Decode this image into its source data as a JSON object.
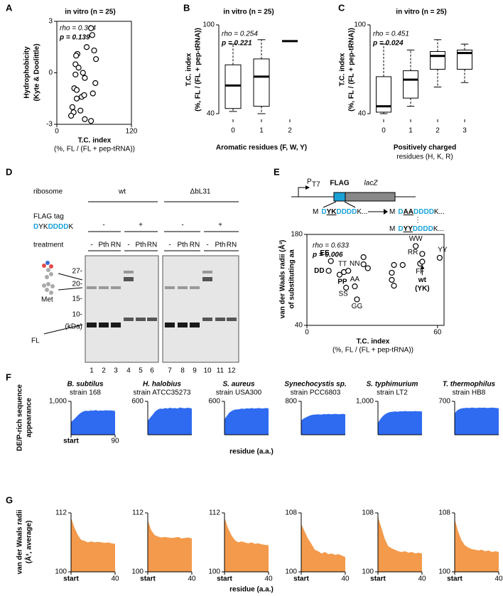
{
  "panel_labels": [
    "A",
    "B",
    "C",
    "D",
    "E",
    "F",
    "G"
  ],
  "chart_data": [
    {
      "type": "scatter",
      "title": "in vitro (n = 25)",
      "annotations": [
        "rho = 0.304",
        "p = 0.139"
      ],
      "annotation_colors": [
        "#000000",
        "#e0241b"
      ],
      "xlabel": [
        "T.C. index",
        "(%, FL / (FL + pep-tRNA))"
      ],
      "ylabel": [
        "Hydrophobicity",
        "(Kyte & Doolittle)"
      ],
      "x": [
        55,
        57,
        48,
        60,
        63,
        33,
        31,
        30,
        35,
        30,
        42,
        45,
        28,
        32,
        62,
        58,
        40,
        44,
        32,
        25,
        27,
        23,
        38,
        45,
        55
      ],
      "values": [
        2.6,
        2.2,
        1.5,
        1.3,
        0.8,
        1.1,
        1.0,
        0.5,
        0.3,
        -0.1,
        0.0,
        -0.3,
        -0.9,
        -1.0,
        -0.6,
        -1.2,
        -1.4,
        -1.3,
        -1.5,
        -2.0,
        -2.3,
        -2.5,
        -2.2,
        -2.7,
        -2.8
      ],
      "xlim": [
        0,
        120
      ],
      "ylim": [
        -3,
        3
      ],
      "xticks": [
        0,
        120
      ],
      "yticks": [
        -3,
        0,
        3
      ],
      "color": "#000000"
    },
    {
      "type": "box",
      "title": "in vitro (n = 25)",
      "annotations": [
        "rho = 0.254",
        "p = 0.221"
      ],
      "annotation_colors": [
        "#000000",
        "#e0241b"
      ],
      "xlabel": [
        "Aromatic  residues (F, W, Y)"
      ],
      "ylabel": [
        "T.C. index",
        "(%, FL / (FL + pep-tRNA))"
      ],
      "categories": [
        0,
        1,
        2
      ],
      "boxes": [
        {
          "low": 41.5,
          "q1": 43.5,
          "median": 59,
          "q3": 73,
          "high": 87
        },
        {
          "low": 40,
          "q1": 45,
          "median": 65,
          "q3": 77,
          "high": 90
        },
        {
          "median": 89
        }
      ],
      "ylim": [
        40,
        100
      ],
      "yticks": [
        40,
        100
      ]
    },
    {
      "type": "box",
      "title": "in vitro (n = 25)",
      "annotations": [
        "rho = 0.451",
        "p = 0.024"
      ],
      "annotation_colors": [
        "#000000",
        "#000000"
      ],
      "xlabel": [
        "Positively charged",
        "residues (H, K, R)"
      ],
      "ylabel": [
        "T.C. index",
        "(%, FL / (FL + pep-tRNA))"
      ],
      "categories": [
        0,
        1,
        2,
        3
      ],
      "boxes": [
        {
          "low": 40,
          "q1": 41,
          "median": 45,
          "q3": 65,
          "high": 87
        },
        {
          "low": 45,
          "q1": 50.5,
          "median": 63,
          "q3": 69,
          "high": 83
        },
        {
          "low": 58,
          "q1": 70,
          "median": 79,
          "q3": 82,
          "high": 90
        },
        {
          "low": 61,
          "q1": 70,
          "median": 81,
          "q3": 83,
          "high": 87
        }
      ],
      "ylim": [
        40,
        100
      ],
      "yticks": [
        40,
        100
      ]
    },
    {
      "type": "scatter",
      "annotations": [
        "rho = 0.633",
        "p = 0.006"
      ],
      "annotation_colors": [
        "#000000",
        "#000000"
      ],
      "xlabel": [
        "T.C. index",
        "(%, FL / (FL + pep-tRNA))"
      ],
      "ylabel": [
        "van der Waals radii (Å³)",
        "of substituting aa"
      ],
      "x": [
        11,
        10,
        15,
        17,
        19,
        18,
        22,
        23,
        26,
        26,
        28,
        39,
        40,
        39,
        40,
        44,
        52,
        53,
        50,
        61,
        53
      ],
      "values": [
        139,
        124,
        118,
        122,
        124,
        98,
        100,
        80,
        145,
        134,
        128,
        121,
        133,
        110,
        101,
        133,
        135,
        150,
        162,
        144,
        138
      ],
      "point_labels": [
        "EE",
        "DD",
        "PP",
        "TT",
        "NN",
        "SS",
        "AA",
        "GG",
        null,
        null,
        null,
        null,
        null,
        null,
        null,
        null,
        "FF",
        "RR",
        "WW",
        "YY",
        "wt"
      ],
      "label_colors": [
        "#1ba3d8",
        "#1ba3d8",
        "#e76ad8",
        "#777777",
        "#777777",
        "#777777",
        "#777777",
        "#777777",
        null,
        null,
        null,
        null,
        null,
        null,
        null,
        null,
        "#777777",
        "#777777",
        "#777777",
        "#777777",
        "#000000"
      ],
      "wt_note": "(YK)",
      "xlim": [
        0,
        63
      ],
      "ylim": [
        40,
        180
      ],
      "xticks": [
        0,
        60
      ],
      "yticks": [
        40,
        180
      ],
      "color": "#000000"
    },
    {
      "type": "area",
      "title": "B. subtilus",
      "subtitle": "strain 168",
      "ylabel": [
        "DE/P-rich sequence",
        "appearance"
      ],
      "xlabel": [
        "residue (a.a.)"
      ],
      "color": "#2f6bf0",
      "x": [
        1,
        6,
        11,
        16,
        21,
        26,
        31,
        36,
        41,
        46,
        51,
        56,
        61,
        66,
        71,
        76,
        81,
        86,
        90
      ],
      "values": [
        380,
        450,
        520,
        600,
        660,
        700,
        720,
        710,
        730,
        720,
        740,
        715,
        730,
        720,
        735,
        725,
        730,
        720,
        710
      ],
      "xlim": [
        1,
        90
      ],
      "ylim": [
        0,
        1000
      ],
      "xticks": [
        {
          "value": 1,
          "label": "start"
        },
        90
      ],
      "yticks": [
        {
          "value": 1000,
          "label": "1,000"
        }
      ]
    },
    {
      "type": "area",
      "title": "H. halobius",
      "subtitle": "strain ATCC35273",
      "color": "#2f6bf0",
      "x": [
        1,
        6,
        11,
        16,
        21,
        26,
        31,
        36,
        41,
        46,
        51,
        56,
        61,
        66,
        71,
        76,
        81,
        86,
        90
      ],
      "values": [
        250,
        310,
        360,
        420,
        450,
        470,
        465,
        480,
        470,
        485,
        475,
        480,
        470,
        490,
        480,
        475,
        485,
        480,
        470
      ],
      "xlim": [
        1,
        90
      ],
      "ylim": [
        0,
        600
      ],
      "yticks": [
        600
      ]
    },
    {
      "type": "area",
      "title": "S. aureus",
      "subtitle": "strain USA300",
      "color": "#2f6bf0",
      "x": [
        1,
        6,
        11,
        16,
        21,
        26,
        31,
        36,
        41,
        46,
        51,
        56,
        61,
        66,
        71,
        76,
        81,
        86,
        90
      ],
      "values": [
        280,
        340,
        400,
        430,
        450,
        455,
        460,
        470,
        465,
        475,
        470,
        480,
        470,
        475,
        480,
        470,
        475,
        480,
        470
      ],
      "xlim": [
        1,
        90
      ],
      "ylim": [
        0,
        600
      ],
      "yticks": [
        600
      ]
    },
    {
      "type": "area",
      "title": "Synechocystis sp.",
      "subtitle": "strain PCC6803",
      "color": "#2f6bf0",
      "x": [
        1,
        6,
        11,
        16,
        21,
        26,
        31,
        36,
        41,
        46,
        51,
        56,
        61,
        66,
        71,
        76,
        81,
        86,
        90
      ],
      "values": [
        340,
        390,
        420,
        450,
        470,
        480,
        485,
        490,
        480,
        495,
        490,
        500,
        490,
        495,
        500,
        490,
        495,
        500,
        490
      ],
      "xlim": [
        1,
        90
      ],
      "ylim": [
        0,
        800
      ],
      "yticks": [
        800
      ]
    },
    {
      "type": "area",
      "title": "S. typhimurium",
      "subtitle": "strain LT2",
      "color": "#2f6bf0",
      "x": [
        1,
        6,
        11,
        16,
        21,
        26,
        31,
        36,
        41,
        46,
        51,
        56,
        61,
        66,
        71,
        76,
        81,
        86,
        90
      ],
      "values": [
        360,
        470,
        560,
        620,
        660,
        680,
        690,
        700,
        690,
        705,
        700,
        710,
        700,
        705,
        700,
        710,
        700,
        705,
        695
      ],
      "xlim": [
        1,
        90
      ],
      "ylim": [
        0,
        1000
      ],
      "yticks": [
        {
          "value": 1000,
          "label": "1,000"
        }
      ]
    },
    {
      "type": "area",
      "title": "T. thermophilus",
      "subtitle": "strain HB8",
      "color": "#2f6bf0",
      "x": [
        1,
        6,
        11,
        16,
        21,
        26,
        31,
        36,
        41,
        46,
        51,
        56,
        61,
        66,
        71,
        76,
        81,
        86,
        90
      ],
      "values": [
        450,
        510,
        540,
        555,
        560,
        565,
        560,
        570,
        565,
        560,
        570,
        565,
        570,
        560,
        565,
        570,
        565,
        560,
        555
      ],
      "xlim": [
        1,
        90
      ],
      "ylim": [
        0,
        700
      ],
      "yticks": [
        700
      ]
    },
    {
      "type": "area",
      "ylabel": [
        "van der Waals radii",
        "(Å³, average)"
      ],
      "xlabel": [
        "residue (a.a.)"
      ],
      "color": "#f39a4c",
      "x": [
        1,
        4,
        7,
        10,
        13,
        16,
        19,
        22,
        25,
        28,
        31,
        34,
        37,
        40
      ],
      "values": [
        111,
        109,
        107.5,
        106.5,
        106.3,
        106,
        106.2,
        106,
        106.1,
        106,
        105.9,
        106,
        105.8,
        105.7
      ],
      "xlim": [
        1,
        40
      ],
      "ylim": [
        100,
        112
      ],
      "xticks": [
        {
          "value": 1,
          "label": "start"
        },
        40
      ],
      "yticks": [
        100,
        112
      ]
    },
    {
      "type": "area",
      "color": "#f39a4c",
      "x": [
        1,
        4,
        7,
        10,
        13,
        16,
        19,
        22,
        25,
        28,
        31,
        34,
        37,
        40
      ],
      "values": [
        110.5,
        108.5,
        107.5,
        107.2,
        107,
        107.1,
        107,
        106.9,
        107,
        107.1,
        106.8,
        106.9,
        107,
        106.8
      ],
      "xlim": [
        1,
        40
      ],
      "ylim": [
        100,
        112
      ],
      "xticks": [
        {
          "value": 1,
          "label": "start"
        },
        40
      ],
      "yticks": [
        100,
        112
      ]
    },
    {
      "type": "area",
      "color": "#f39a4c",
      "x": [
        1,
        4,
        7,
        10,
        13,
        16,
        19,
        22,
        25,
        28,
        31,
        34,
        37,
        40
      ],
      "values": [
        111,
        109,
        107.5,
        106.5,
        106,
        106.2,
        106,
        105.8,
        106,
        105.7,
        105.8,
        105.6,
        105.5,
        105.4
      ],
      "xlim": [
        1,
        40
      ],
      "ylim": [
        100,
        112
      ],
      "xticks": [
        {
          "value": 1,
          "label": "start"
        },
        40
      ],
      "yticks": [
        100,
        112
      ]
    },
    {
      "type": "area",
      "color": "#f39a4c",
      "x": [
        1,
        4,
        7,
        10,
        13,
        16,
        19,
        22,
        25,
        28,
        31,
        34,
        37,
        40
      ],
      "values": [
        106.5,
        105.5,
        104.5,
        103.8,
        103,
        102.8,
        102.5,
        102.7,
        102.4,
        102.5,
        102.3,
        102.4,
        102.2,
        102
      ],
      "xlim": [
        1,
        40
      ],
      "ylim": [
        100,
        108
      ],
      "xticks": [
        {
          "value": 1,
          "label": "start"
        },
        40
      ],
      "yticks": [
        100,
        108
      ]
    },
    {
      "type": "area",
      "color": "#f39a4c",
      "x": [
        1,
        4,
        7,
        10,
        13,
        16,
        19,
        22,
        25,
        28,
        31,
        34,
        37,
        40
      ],
      "values": [
        107.5,
        106,
        104.5,
        103.5,
        103.2,
        103,
        102.8,
        102.7,
        102.8,
        102.6,
        102.7,
        102.5,
        102.6,
        102.5
      ],
      "xlim": [
        1,
        40
      ],
      "ylim": [
        100,
        108
      ],
      "xticks": [
        {
          "value": 1,
          "label": "start"
        },
        40
      ],
      "yticks": [
        100,
        108
      ]
    },
    {
      "type": "area",
      "color": "#f39a4c",
      "x": [
        1,
        4,
        7,
        10,
        13,
        16,
        19,
        22,
        25,
        28,
        31,
        34,
        37,
        40
      ],
      "values": [
        107.2,
        105.5,
        104.3,
        103.6,
        103.3,
        103.1,
        103,
        102.9,
        103,
        102.8,
        102.9,
        102.7,
        102.8,
        102.7
      ],
      "xlim": [
        1,
        40
      ],
      "ylim": [
        100,
        108
      ],
      "xticks": [
        {
          "value": 1,
          "label": "start"
        },
        40
      ],
      "yticks": [
        100,
        108
      ]
    }
  ],
  "gel": {
    "ribosome": "ribosome",
    "groups": [
      "wt",
      "ΔbL31"
    ],
    "flag_tag": "FLAG tag",
    "flag_seq": [
      "D",
      "YK",
      "DDDD",
      "K"
    ],
    "flag_states": [
      "-",
      "+",
      "-",
      "+"
    ],
    "treatment": "treatment",
    "treatments": [
      "-",
      "Pth",
      "RN"
    ],
    "markers": [
      "27-",
      "20-",
      "15-",
      "10-",
      "(kDa)"
    ],
    "met": "Met",
    "fl": "FL",
    "lanes": [
      1,
      2,
      3,
      4,
      5,
      6,
      7,
      8,
      9,
      10,
      11,
      12
    ]
  },
  "diagram": {
    "promoter": "P",
    "promoter_sub": "T7",
    "tag": "FLAG",
    "gene": "lacZ",
    "seq_wt": [
      "M",
      "D",
      "YK",
      "DDDD",
      "K..."
    ],
    "seq_aa": [
      "M",
      "D",
      "AA",
      "DDDD",
      "K..."
    ],
    "ellipsis": "⋮",
    "seq_yy": [
      "M",
      "D",
      "YY",
      "DDDD",
      "K..."
    ]
  }
}
